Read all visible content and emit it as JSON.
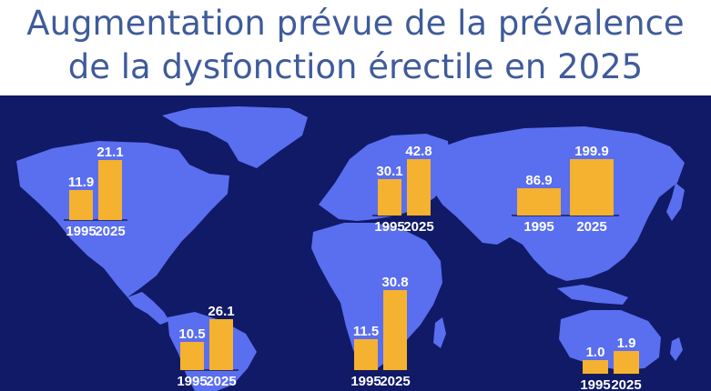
{
  "title": {
    "line1": "Augmentation prévue de la prévalence",
    "line2": "de la dysfonction érectile en 2025"
  },
  "colors": {
    "title": "#3f5b9a",
    "ocean": "#101a66",
    "land": "#5a6ef0",
    "bar": "#f5b130",
    "label": "#ffffff"
  },
  "chart_data": [
    {
      "type": "bar",
      "categories": [
        "1995",
        "2025"
      ],
      "values": [
        11.9,
        21.1
      ]
    },
    {
      "type": "bar",
      "categories": [
        "1995",
        "2025"
      ],
      "values": [
        10.5,
        26.1
      ]
    },
    {
      "type": "bar",
      "categories": [
        "1995",
        "2025"
      ],
      "values": [
        30.1,
        42.8
      ]
    },
    {
      "type": "bar",
      "categories": [
        "1995",
        "2025"
      ],
      "values": [
        11.5,
        30.8
      ]
    },
    {
      "type": "bar",
      "categories": [
        "1995",
        "2025"
      ],
      "values": [
        86.9,
        199.9
      ]
    },
    {
      "type": "bar",
      "categories": [
        "1995",
        "2025"
      ],
      "values": [
        1.0,
        1.9
      ]
    }
  ]
}
